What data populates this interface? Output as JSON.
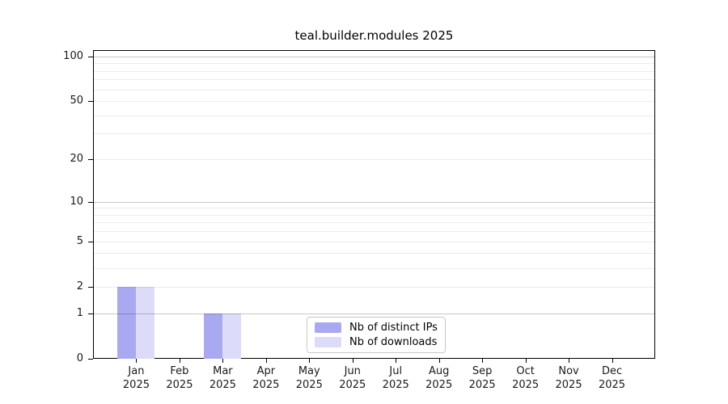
{
  "chart_data": {
    "type": "bar",
    "title": "teal.builder.modules 2025",
    "year": "2025",
    "categories": [
      "Jan",
      "Feb",
      "Mar",
      "Apr",
      "May",
      "Jun",
      "Jul",
      "Aug",
      "Sep",
      "Oct",
      "Nov",
      "Dec"
    ],
    "series": [
      {
        "name": "Nb of distinct IPs",
        "color": "#a9a9f1",
        "values": [
          2,
          0,
          1,
          0,
          0,
          0,
          0,
          0,
          0,
          0,
          0,
          0
        ]
      },
      {
        "name": "Nb of downloads",
        "color": "#dcdcf8",
        "values": [
          2,
          0,
          1,
          0,
          0,
          0,
          0,
          0,
          0,
          0,
          0,
          0
        ]
      }
    ],
    "y_axis": {
      "scale": "log1p",
      "ticks": [
        0,
        1,
        2,
        5,
        10,
        20,
        50,
        100
      ],
      "minor_ticks": [
        3,
        4,
        6,
        7,
        8,
        9,
        30,
        40,
        60,
        70,
        80,
        90
      ],
      "emphasized_ticks": [
        1,
        10,
        100
      ],
      "max": 110
    },
    "x_axis": {
      "tick_label_line2": "2025"
    },
    "legend": {
      "position": "lower center"
    },
    "grid": true,
    "colors": {
      "grid_minor": "rgba(0,0,0,0.075)",
      "grid_emphasized": "rgba(0,0,0,0.22)",
      "spine": "#000000",
      "text": "#1a1a1a"
    }
  }
}
